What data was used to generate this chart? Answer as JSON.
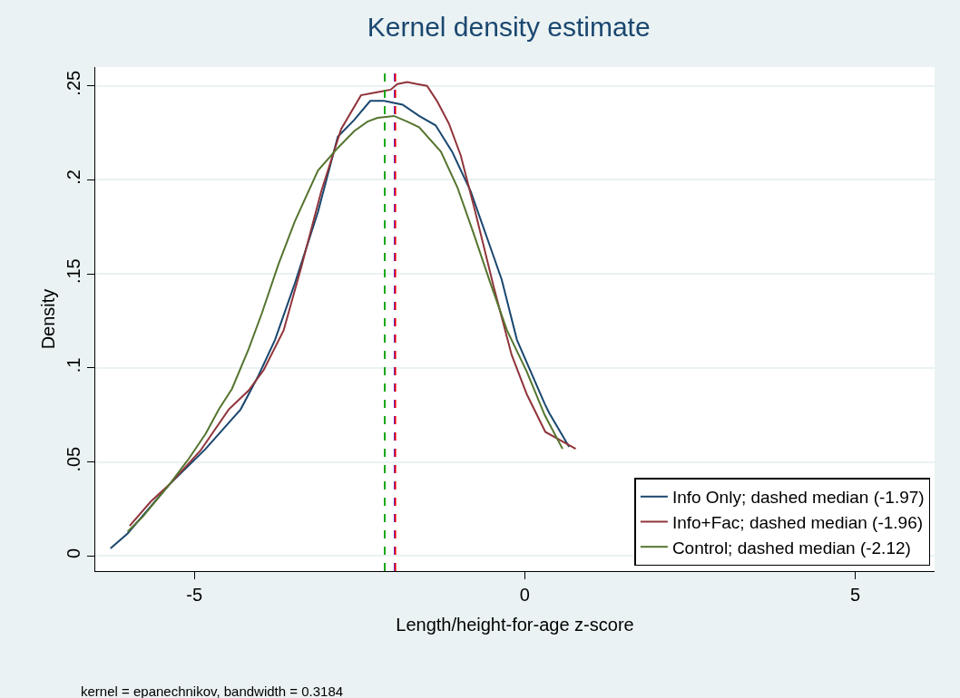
{
  "chart_data": {
    "type": "line",
    "title": "Kernel density estimate",
    "xlabel": "Length/height-for-age z-score",
    "ylabel": "Density",
    "annotations": [
      "kernel = epanechnikov, bandwidth = 0.3184"
    ],
    "xlim": [
      -6.5,
      6.2
    ],
    "xticks": [
      -5,
      0,
      5
    ],
    "ylim": [
      -0.008,
      0.26
    ],
    "yticks": [
      0,
      {
        "value": 0.05,
        "label": ".05"
      },
      {
        "value": 0.1,
        "label": ".1"
      },
      {
        "value": 0.15,
        "label": ".15"
      },
      {
        "value": 0.2,
        "label": ".2"
      },
      {
        "value": 0.25,
        "label": ".25"
      }
    ],
    "grid": "y",
    "legend": "bottom right",
    "line_style": "solid",
    "marker": "none",
    "series": [
      {
        "name": "Info Only; dashed median (-1.97)",
        "color": "#1a476f",
        "x": [
          -6.27,
          -6.01,
          -5.38,
          -4.83,
          -4.3,
          -4.03,
          -3.78,
          -3.48,
          -3.13,
          -2.83,
          -2.58,
          -2.34,
          -2.13,
          -1.85,
          -1.6,
          -1.35,
          -1.1,
          -0.82,
          -0.57,
          -0.35,
          -0.12,
          0.3,
          0.37,
          0.67
        ],
        "values": [
          0.004,
          0.012,
          0.038,
          0.057,
          0.078,
          0.096,
          0.115,
          0.145,
          0.183,
          0.223,
          0.232,
          0.242,
          0.242,
          0.24,
          0.234,
          0.229,
          0.215,
          0.194,
          0.169,
          0.147,
          0.115,
          0.081,
          0.076,
          0.058
        ]
      },
      {
        "name": "Info+Fac; dashed median (-1.96)",
        "color": "#90353b",
        "x": [
          -5.98,
          -5.66,
          -5.38,
          -4.91,
          -4.48,
          -4.18,
          -3.95,
          -3.65,
          -3.38,
          -3.08,
          -2.78,
          -2.48,
          -2.33,
          -2.18,
          -2.03,
          -1.93,
          -1.78,
          -1.63,
          -1.48,
          -1.33,
          -1.15,
          -0.97,
          -0.75,
          -0.47,
          -0.2,
          0.03,
          0.31,
          0.77
        ],
        "values": [
          0.016,
          0.029,
          0.038,
          0.056,
          0.078,
          0.088,
          0.099,
          0.12,
          0.154,
          0.194,
          0.227,
          0.245,
          0.246,
          0.247,
          0.248,
          0.251,
          0.252,
          0.251,
          0.25,
          0.242,
          0.23,
          0.213,
          0.183,
          0.143,
          0.107,
          0.086,
          0.066,
          0.057
        ]
      },
      {
        "name": "Control; dashed median (-2.12)",
        "color": "#55752f",
        "x": [
          -6.01,
          -5.78,
          -5.38,
          -5.08,
          -4.83,
          -4.63,
          -4.43,
          -4.18,
          -3.98,
          -3.73,
          -3.48,
          -3.13,
          -2.83,
          -2.58,
          -2.38,
          -2.23,
          -1.98,
          -1.78,
          -1.6,
          -1.27,
          -1.02,
          -0.77,
          -0.52,
          -0.27,
          0.03,
          0.3,
          0.57
        ],
        "values": [
          0.013,
          0.021,
          0.038,
          0.052,
          0.065,
          0.078,
          0.089,
          0.11,
          0.129,
          0.155,
          0.178,
          0.205,
          0.217,
          0.226,
          0.231,
          0.233,
          0.234,
          0.231,
          0.228,
          0.215,
          0.196,
          0.171,
          0.145,
          0.12,
          0.098,
          0.075,
          0.057
        ]
      }
    ],
    "ref_lines": [
      {
        "axis": "x",
        "value": -2.12,
        "color": "#00a000",
        "line_style": "dashed"
      },
      {
        "axis": "x",
        "value": -1.97,
        "color": "#3030ff",
        "line_style": "dashed"
      },
      {
        "axis": "x",
        "value": -1.96,
        "color": "#ff0000",
        "line_style": "dashed"
      }
    ]
  }
}
